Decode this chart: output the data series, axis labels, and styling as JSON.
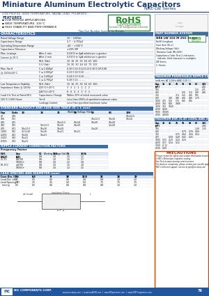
{
  "title": "Miniature Aluminum Electrolytic Capacitors",
  "series": "NRE-LW Series",
  "subtitle": "LOW PROFILE, WIDE TEMPERATURE, RADIAL LEAD, POLARIZED",
  "features_title": "FEATURES",
  "features": [
    "▪ LOW PROFILE APPLICATIONS",
    "▪ WIDE TEMPERATURE: 105°C",
    "▪ HIGH STABILITY AND PERFORMANCE"
  ],
  "rohs_text": "RoHS",
  "rohs_sub": "Compliant",
  "rohs_note": "Includes all halogeneous materials",
  "pn_note": "*See Part Number System for Details",
  "char_title": "CHARACTERISTICS",
  "char_rows": [
    [
      "Rated Voltage Range",
      "",
      "10 ~ 100Vdc"
    ],
    [
      "Capacitance Range",
      "",
      "4.7 ~ 4,700μF"
    ],
    [
      "Operating Temperature Range",
      "",
      "-40 ~ +105°C"
    ],
    [
      "Capacitance Tolerance",
      "",
      "±20% (M)"
    ],
    [
      "Max. Leakage",
      "After 1 min.",
      "0.03CV or 4μA whichever is greater"
    ],
    [
      "Current @ 20°C",
      "After 2 min.",
      "0.01CV or 3μA whichever is greater"
    ],
    [
      "",
      "W.V. (Vdc)",
      "10  16  25  35  50  63  100"
    ],
    [
      "",
      "5.V (Vdc)",
      "10  20  30  44  63  79  125"
    ],
    [
      "Max. Tan δ",
      "C ≤ 1,000μF",
      "0.20 0.14 0.14 0.12 0.10 0.09 0.08"
    ],
    [
      "@ 120Hz/20°C",
      "C ≤ 2,000μF",
      "0.22 0.18 0.18 - - - -"
    ],
    [
      "",
      "C ≤ 3,000μF",
      "0.24 0.23 0.18 - - - -"
    ],
    [
      "",
      "C ≤ 4,700μF",
      "0.28 0.22 - - - - -"
    ],
    [
      "Low Temperature Stability",
      "W.V. (Vdc)",
      "10  16  25  35  50  63  100"
    ],
    [
      "Impedance Ratio @ 120Hz",
      "Z-25°C/+20°C",
      "3   3   2   2   2   2   2"
    ],
    [
      "",
      "Z-40°C/+20°C",
      "8   6   4   3   3   3   3"
    ],
    [
      "Load Life Test at Rated W.V.",
      "Capacitance Change",
      "Within 20% of initial measured value"
    ],
    [
      "105°C 1,000 Hours",
      "Tan δ",
      "Less than 200% of specified maximum value"
    ],
    [
      "",
      "Leakage Current",
      "Less than specified maximum value"
    ]
  ],
  "std_title": "STANDARD PRODUCT AND CASE SIZE TABLE (D × L mm)",
  "std_col_headers": [
    "Cap",
    "Code",
    "Working Voltage (Vdc)"
  ],
  "std_v_headers": [
    "10",
    "16",
    "25",
    "35",
    "50",
    "63",
    "100"
  ],
  "std_data": [
    [
      "47",
      "476",
      "",
      "",
      "",
      "",
      "",
      "",
      "10x12.5"
    ],
    [
      "100",
      "101",
      "",
      "",
      "",
      "",
      "10x12.5",
      "10x16",
      "10x16"
    ],
    [
      "220",
      "221",
      "",
      "",
      "10x12.5",
      "10x16",
      "10x20",
      "10x20",
      ""
    ],
    [
      "330",
      "331",
      "",
      "10x12.5",
      "10x16",
      "10x20",
      "",
      "13x20",
      ""
    ],
    [
      "470",
      "471",
      "10x12.5",
      "10x16",
      "10x20",
      "",
      "13x20",
      "",
      ""
    ],
    [
      "1,000",
      "102",
      "13.5x16",
      "16x16",
      "16x21",
      "16x21",
      "",
      "",
      ""
    ],
    [
      "2,200",
      "222",
      "16x16",
      "16x21",
      "",
      "",
      "",
      "",
      ""
    ],
    [
      "3,300",
      "332",
      "16x21",
      "",
      "",
      "",
      "",
      "",
      ""
    ],
    [
      "4,700",
      "472",
      "16x21",
      "",
      "",
      "",
      "",
      "",
      ""
    ]
  ],
  "pn_title": "PART NUMBER SYSTEM",
  "pn_example": "NRE LW 102 M 25V 35X20",
  "pn_items": [
    "RoHS Compliant",
    "Case Size (Dx L)",
    "Working Voltage (Vdc)",
    "Tolerance Code (M=20%)",
    "Capacitance Code: First 2 characters",
    "  indicate, third character is multiplier",
    "LW Series",
    "1- Series"
  ],
  "ripple_title": "RIPPLE CURRENT CORRECTION FACTORS",
  "ripple_sub": "Frequency Factor",
  "ripple_col1": "W.V.\n(Vdc)",
  "ripple_col2": "Cap\n(μF)",
  "ripple_freq": [
    "50",
    "120",
    "1k",
    "100k"
  ],
  "ripple_data": [
    [
      "6.3-16",
      "ALL",
      "0.8",
      "1.0",
      "1.5",
      "1.2"
    ],
    [
      "25-35",
      "≤4700",
      "0.8",
      "1.0",
      "1.5",
      "1.7"
    ],
    [
      "",
      "10000+",
      "0.8",
      "1.0",
      "1.2",
      "1.8"
    ],
    [
      "50-100",
      "≤4700",
      "0.8",
      "1.0",
      "1.5",
      "1.8"
    ],
    [
      "",
      "10000+",
      "0.8",
      "1.0",
      "1.2",
      "1.5"
    ]
  ],
  "lead_title": "LEAD SPACING AND DIAMETER (mm)",
  "lead_row1_label": "Case Dia. (Dx)",
  "lead_row1": [
    "5",
    "6.3",
    "8",
    "10",
    "12.5",
    "16",
    "18",
    "20"
  ],
  "lead_row2_label": "Lead Dia. (d2)",
  "lead_row2": [
    "0.5",
    "0.5",
    "0.6",
    "0.6",
    "0.8",
    "0.8",
    "1.0",
    "1.0"
  ],
  "lead_row3_label": "Lead Spacing (F)",
  "lead_row3": [
    "2.0",
    "2.5",
    "3.5",
    "5.0",
    "5.0",
    "7.5",
    "7.5",
    "7.5"
  ],
  "lead_row4_label": "  (mm)ρ",
  "lead_row4": [
    "0.5",
    "0.5",
    "0.6",
    "0.6",
    "0.8",
    "0.8",
    "1.0",
    "1.0"
  ],
  "max_ripple_title": "MAXIMUM PERMISSIBLE RIPPLE CURRENT",
  "max_ripple_sub": "(mA rms AT 120Hz AND 105°C)",
  "max_ripple_v_headers": [
    "10",
    "16",
    "25",
    "35",
    "50",
    "63",
    "100"
  ],
  "max_ripple_data": [
    [
      "47",
      "-",
      "-",
      "-",
      "-",
      "-",
      "-",
      "240"
    ],
    [
      "100",
      "-",
      "-",
      "-",
      "-",
      "-",
      "210",
      "275"
    ],
    [
      "220",
      "-",
      "-",
      "-",
      "270",
      "310",
      "380",
      "490"
    ],
    [
      "330",
      "-",
      "-",
      "310",
      "360",
      "440",
      "505",
      "-"
    ],
    [
      "470",
      "-",
      "340",
      "390",
      "430",
      "490",
      "1.75",
      "-"
    ],
    [
      "1000",
      "470",
      "520",
      "570",
      "640",
      "840",
      "-",
      "-"
    ],
    [
      "2200",
      "760",
      "840",
      "1080",
      "-",
      "-",
      "-",
      "-"
    ],
    [
      "3300",
      "960",
      "1040",
      "-",
      "-",
      "-",
      "-",
      "-"
    ],
    [
      "4700",
      "1200",
      "-",
      "-",
      "-",
      "-",
      "-",
      "-"
    ],
    [
      "5000",
      "10000",
      "-",
      "-",
      "-",
      "-",
      "-",
      "-"
    ],
    [
      "4700",
      "12000",
      "-",
      "-",
      "-",
      "-",
      "-",
      "-"
    ]
  ],
  "max_esr_title": "MAXIMUM ESR (Ω AT 120Hz AND 20°C)",
  "max_esr_v_headers": [
    "10",
    "16",
    "25",
    "35",
    "50",
    "63",
    "100"
  ],
  "max_esr_data": [
    [
      "47",
      "-",
      "-",
      "-",
      "-",
      "-",
      "-",
      "2.82"
    ],
    [
      "100",
      "-",
      "-",
      "-",
      "-",
      "-",
      "1.49",
      "1.33"
    ],
    [
      "220",
      "-",
      "-",
      "-",
      "0.79",
      "0.76",
      "0.60",
      "-"
    ],
    [
      "330",
      "-",
      "-",
      "0.75",
      "0.64",
      "0.56",
      "0.54",
      "-"
    ],
    [
      "470",
      "-",
      "0.58",
      "0.49",
      "0.43",
      "0.25",
      "-",
      "-"
    ],
    [
      "1000",
      "0.33",
      "0.29",
      "0.24",
      "0.24",
      "-",
      "-",
      "-"
    ],
    [
      "2200",
      "0.17",
      "0.14",
      "0.12",
      "-",
      "-",
      "-",
      "-"
    ],
    [
      "3300",
      "-0.12",
      "-",
      "-",
      "-",
      "-",
      "-",
      "-"
    ],
    [
      "4700",
      "0.09",
      "-",
      "-",
      "-",
      "-",
      "-",
      "-"
    ]
  ],
  "precautions_title": "PRECAUTIONS",
  "precautions_lines": [
    "Please review the safety and caution information found on pages P44 & 45",
    "of NIC's Electrolytic Capacitor catalog.",
    "See Tech at www.niccomp.com/resources",
    "If a doubt or complexity, please review your specific application - process details with",
    "NIC's technical support: service at gen@niccomp.com"
  ],
  "footer_left": "NIC COMPONENTS CORP.",
  "footer_urls": "www.niccomp.com  |  www.loadESR.com  |  www.RFpassives.com  |  www.SMTmagnetics.com",
  "page_num": "79",
  "bg_color": "#ffffff",
  "title_blue": "#1a3a6e",
  "table_header_blue": "#3c6ea5",
  "light_blue_row": "#dce8f5",
  "rohs_green": "#2d8a2d",
  "border_gray": "#888888",
  "text_dark": "#111111",
  "footer_bar_color": "#2055a0"
}
